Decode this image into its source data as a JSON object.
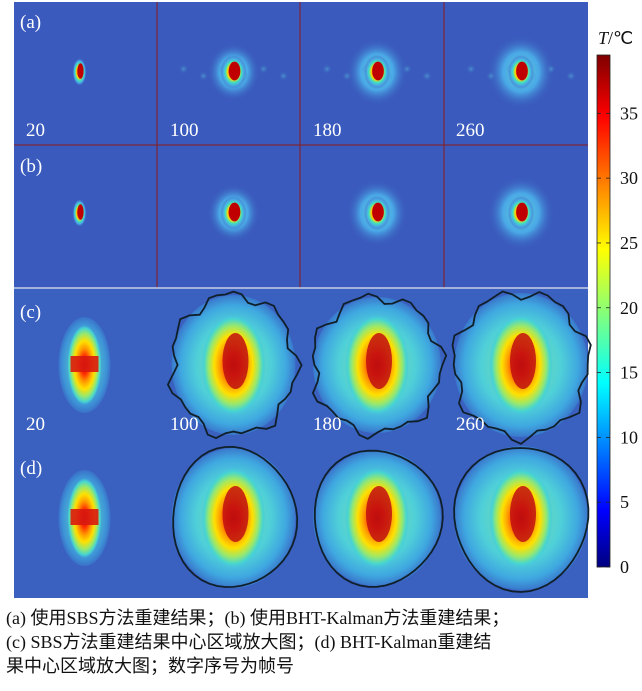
{
  "panels": {
    "a": {
      "label": "(a)"
    },
    "b": {
      "label": "(b)"
    },
    "c": {
      "label": "(c)"
    },
    "d": {
      "label": "(d)"
    }
  },
  "frame_labels_a": [
    "20",
    "100",
    "180",
    "260"
  ],
  "frame_labels_c": [
    "20",
    "100",
    "180",
    "260"
  ],
  "colorbar": {
    "title_var": "T",
    "title_unit": "/℃",
    "ticks": [
      "35",
      "30",
      "25",
      "20",
      "15",
      "10",
      "5",
      "0"
    ],
    "tick_values": [
      35,
      30,
      25,
      20,
      15,
      10,
      5,
      0
    ],
    "min": 0,
    "max": 39.5,
    "colormap": "jet"
  },
  "caption": {
    "line1": "(a) 使用SBS方法重建结果；(b) 使用BHT-Kalman方法重建结果；",
    "line2": "(c) SBS方法重建结果中心区域放大图；(d) BHT-Kalman重建结",
    "line3": "果中心区域放大图；数字序号为帧号"
  },
  "colors": {
    "background": "#3a5bbd",
    "grid_line": "#8b1a1a",
    "contour": "#10202a"
  }
}
